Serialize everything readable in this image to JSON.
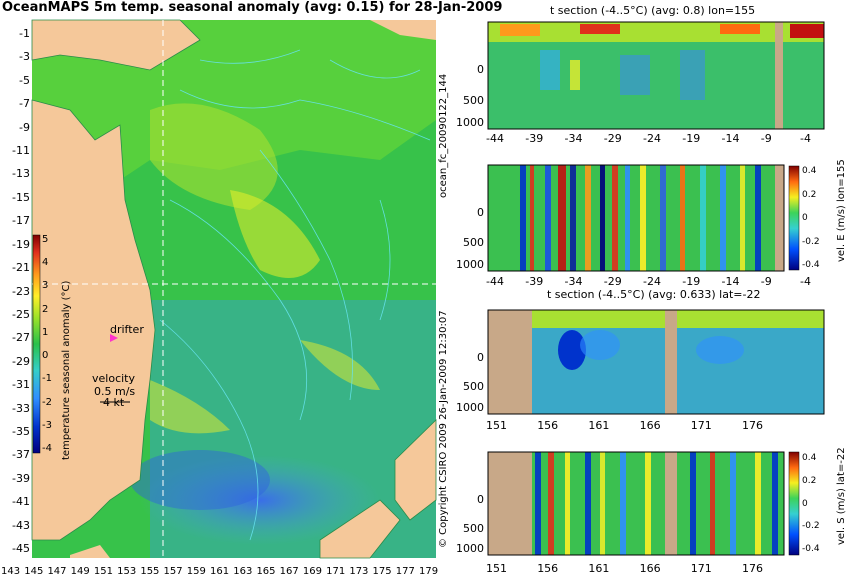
{
  "title": "OceanMAPS 5m temp. seasonal anomaly (avg: 0.15) for 28-Jan-2009",
  "map": {
    "y_ticks": [
      "-1",
      "-3",
      "-5",
      "-7",
      "-9",
      "-11",
      "-13",
      "-15",
      "-17",
      "-19",
      "-21",
      "-23",
      "-25",
      "-27",
      "-29",
      "-31",
      "-33",
      "-35",
      "-37",
      "-39",
      "-41",
      "-43",
      "-45"
    ],
    "x_ticks": [
      "143",
      "145",
      "147",
      "149",
      "151",
      "153",
      "155",
      "157",
      "159",
      "161",
      "163",
      "165",
      "167",
      "169",
      "171",
      "173",
      "175",
      "177",
      "179"
    ],
    "drifter_label": "drifter",
    "velocity_label": "velocity",
    "velocity_value": "0.5 m/s",
    "velocity_kts": "4 kt",
    "colors": {
      "land": "#f5c89a",
      "contour": "#66e3ee",
      "crosshair": "#ffffff",
      "drifter": "#ff33cc"
    }
  },
  "colorbar": {
    "label": "temperature seasonal anomaly (°C)",
    "ticks": [
      "5",
      "4",
      "3",
      "2",
      "1",
      "0",
      "-1",
      "-2",
      "-3",
      "-4"
    ]
  },
  "sections": [
    {
      "title": "t section (-4..5°C) (avg: 0.8) lon=155",
      "x_ticks": [
        "-44",
        "-39",
        "-34",
        "-29",
        "-24",
        "-19",
        "-14",
        "-9",
        "-4"
      ],
      "y_ticks": [
        "0",
        "500",
        "1000"
      ]
    },
    {
      "title": "",
      "x_ticks": [
        "-44",
        "-39",
        "-34",
        "-29",
        "-24",
        "-19",
        "-14",
        "-9",
        "-4"
      ],
      "y_ticks": [
        "0",
        "500",
        "1000"
      ],
      "colorbar_ticks": [
        "0.4",
        "0.2",
        "0",
        "-0.2",
        "-0.4"
      ],
      "colorbar_label": "vel. E (m/s) lon=155"
    },
    {
      "title": "t section (-4..5°C) (avg: 0.633) lat=-22",
      "x_ticks": [
        "151",
        "156",
        "161",
        "166",
        "171",
        "176"
      ],
      "y_ticks": [
        "0",
        "500",
        "1000"
      ]
    },
    {
      "title": "",
      "x_ticks": [
        "151",
        "156",
        "161",
        "166",
        "171",
        "176"
      ],
      "y_ticks": [
        "0",
        "500",
        "1000"
      ],
      "colorbar_ticks": [
        "0.4",
        "0.2",
        "0",
        "-0.2",
        "-0.4"
      ],
      "colorbar_label": "vel. S (m/s) lat=-22"
    }
  ],
  "side_label_top": "ocean_fc_20090122_144",
  "side_label_bottom": "© Copyright CSIRO 2009    26-Jan-2009 12:30:07"
}
